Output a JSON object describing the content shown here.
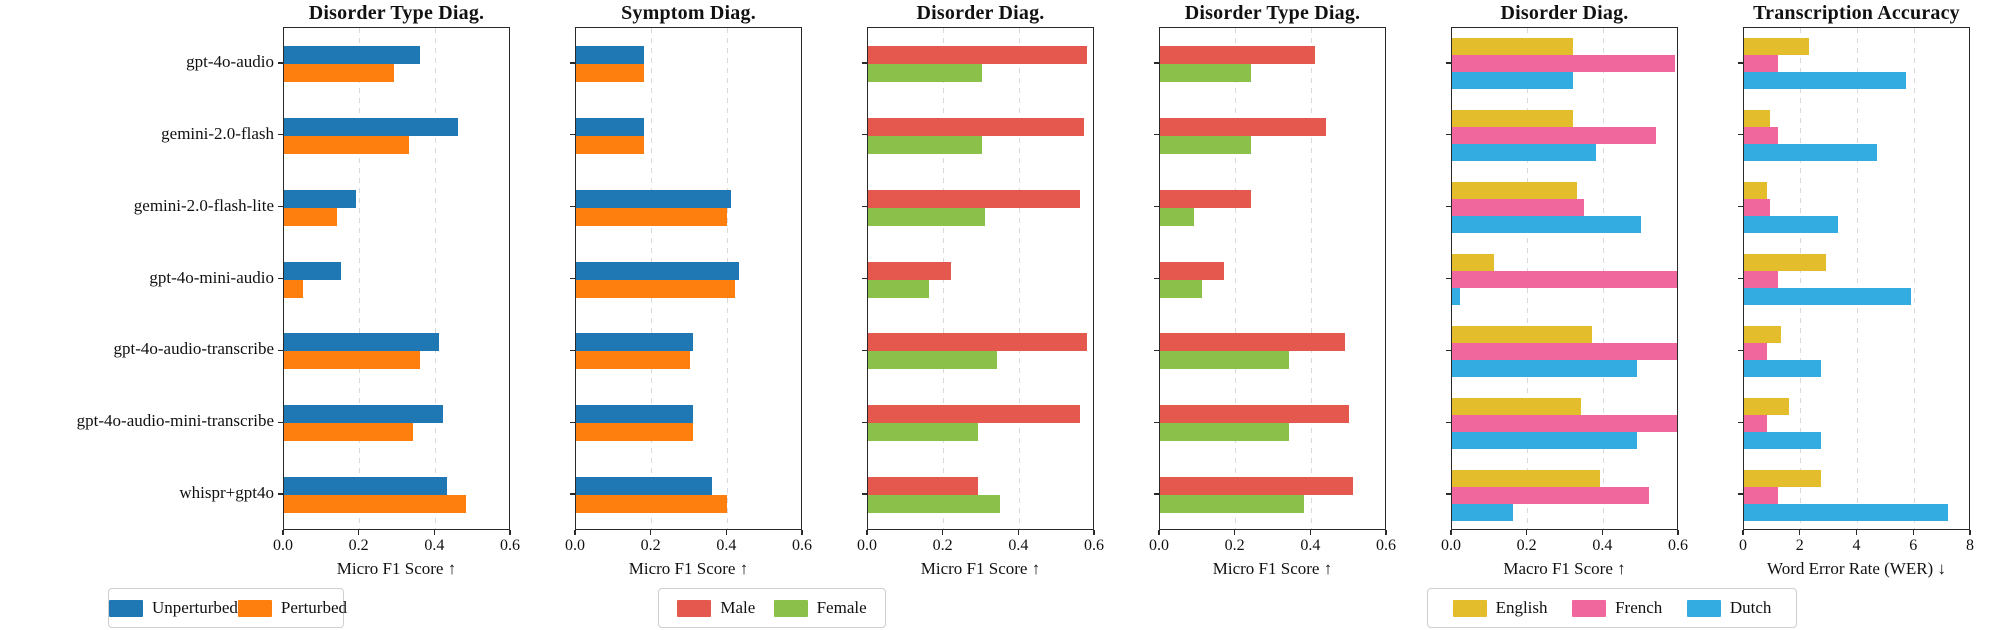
{
  "chart_data": {
    "type": "bar",
    "orientation": "horizontal",
    "models": [
      "gpt-4o-audio",
      "gemini-2.0-flash",
      "gemini-2.0-flash-lite",
      "gpt-4o-mini-audio",
      "gpt-4o-audio-transcribe",
      "gpt-4o-audio-mini-transcribe",
      "whispr+gpt4o"
    ],
    "panels": [
      {
        "title": "Disorder Type Diag.",
        "xlabel": "Micro F1 Score ↑",
        "xlim": [
          0,
          0.6
        ],
        "grid": true,
        "xticks": [
          {
            "label": "0.0",
            "value": 0.0
          },
          {
            "label": "0.2",
            "value": 0.2
          },
          {
            "label": "0.4",
            "value": 0.4
          },
          {
            "label": "0.6",
            "value": 0.6
          }
        ],
        "series": [
          {
            "name": "Unperturbed",
            "color": "#1f77b4",
            "values": [
              0.36,
              0.46,
              0.19,
              0.15,
              0.41,
              0.42,
              0.43
            ]
          },
          {
            "name": "Perturbed",
            "color": "#ff7f0e",
            "values": [
              0.29,
              0.33,
              0.14,
              0.05,
              0.36,
              0.34,
              0.48
            ]
          }
        ]
      },
      {
        "title": "Symptom Diag.",
        "xlabel": "Micro F1 Score ↑",
        "xlim": [
          0,
          0.6
        ],
        "grid": true,
        "xticks": [
          {
            "label": "0.0",
            "value": 0.0
          },
          {
            "label": "0.2",
            "value": 0.2
          },
          {
            "label": "0.4",
            "value": 0.4
          },
          {
            "label": "0.6",
            "value": 0.6
          }
        ],
        "series": [
          {
            "name": "Unperturbed",
            "color": "#1f77b4",
            "values": [
              0.18,
              0.18,
              0.41,
              0.43,
              0.31,
              0.31,
              0.36
            ]
          },
          {
            "name": "Perturbed",
            "color": "#ff7f0e",
            "values": [
              0.18,
              0.18,
              0.4,
              0.42,
              0.3,
              0.31,
              0.4
            ]
          }
        ]
      },
      {
        "title": "Disorder Diag.",
        "xlabel": "Micro F1 Score ↑",
        "xlim": [
          0,
          0.6
        ],
        "grid": true,
        "xticks": [
          {
            "label": "0.0",
            "value": 0.0
          },
          {
            "label": "0.2",
            "value": 0.2
          },
          {
            "label": "0.4",
            "value": 0.4
          },
          {
            "label": "0.6",
            "value": 0.6
          }
        ],
        "series": [
          {
            "name": "Male",
            "color": "#e4584e",
            "values": [
              0.58,
              0.57,
              0.56,
              0.22,
              0.58,
              0.56,
              0.29
            ]
          },
          {
            "name": "Female",
            "color": "#8bc04a",
            "values": [
              0.3,
              0.3,
              0.31,
              0.16,
              0.34,
              0.29,
              0.35
            ]
          }
        ]
      },
      {
        "title": "Disorder Type Diag.",
        "xlabel": "Micro F1 Score ↑",
        "xlim": [
          0,
          0.6
        ],
        "grid": true,
        "xticks": [
          {
            "label": "0.0",
            "value": 0.0
          },
          {
            "label": "0.2",
            "value": 0.2
          },
          {
            "label": "0.4",
            "value": 0.4
          },
          {
            "label": "0.6",
            "value": 0.6
          }
        ],
        "series": [
          {
            "name": "Male",
            "color": "#e4584e",
            "values": [
              0.41,
              0.44,
              0.24,
              0.17,
              0.49,
              0.5,
              0.51
            ]
          },
          {
            "name": "Female",
            "color": "#8bc04a",
            "values": [
              0.24,
              0.24,
              0.09,
              0.11,
              0.34,
              0.34,
              0.38
            ]
          }
        ]
      },
      {
        "title": "Disorder Diag.",
        "xlabel": "Macro F1 Score ↑",
        "xlim": [
          0,
          0.6
        ],
        "grid": true,
        "xticks": [
          {
            "label": "0.0",
            "value": 0.0
          },
          {
            "label": "0.2",
            "value": 0.2
          },
          {
            "label": "0.4",
            "value": 0.4
          },
          {
            "label": "0.6",
            "value": 0.6
          }
        ],
        "series": [
          {
            "name": "English",
            "color": "#e4bd2c",
            "values": [
              0.32,
              0.32,
              0.33,
              0.11,
              0.37,
              0.34,
              0.39
            ]
          },
          {
            "name": "French",
            "color": "#ef679d",
            "values": [
              0.59,
              0.54,
              0.35,
              0.6,
              0.6,
              0.6,
              0.52
            ]
          },
          {
            "name": "Dutch",
            "color": "#33ade1",
            "values": [
              0.32,
              0.38,
              0.5,
              0.02,
              0.49,
              0.49,
              0.16
            ]
          }
        ]
      },
      {
        "title": "Transcription Accuracy",
        "xlabel": "Word Error Rate (WER) ↓",
        "xlim": [
          0,
          8
        ],
        "grid": true,
        "xticks": [
          {
            "label": "0",
            "value": 0
          },
          {
            "label": "2",
            "value": 2
          },
          {
            "label": "4",
            "value": 4
          },
          {
            "label": "6",
            "value": 6
          },
          {
            "label": "8",
            "value": 8
          }
        ],
        "series": [
          {
            "name": "English",
            "color": "#e4bd2c",
            "values": [
              2.3,
              0.9,
              0.8,
              2.9,
              1.3,
              1.6,
              2.7
            ]
          },
          {
            "name": "French",
            "color": "#ef679d",
            "values": [
              1.2,
              1.2,
              0.9,
              1.2,
              0.8,
              0.8,
              1.2
            ]
          },
          {
            "name": "Dutch",
            "color": "#33ade1",
            "values": [
              5.7,
              4.7,
              3.3,
              5.9,
              2.7,
              2.7,
              7.2
            ]
          }
        ]
      }
    ],
    "legends": [
      {
        "items": [
          {
            "label": "Unperturbed",
            "color": "#1f77b4"
          },
          {
            "label": "Perturbed",
            "color": "#ff7f0e"
          }
        ]
      },
      {
        "items": [
          {
            "label": "Male",
            "color": "#e4584e"
          },
          {
            "label": "Female",
            "color": "#8bc04a"
          }
        ]
      },
      {
        "items": [
          {
            "label": "English",
            "color": "#e4bd2c"
          },
          {
            "label": "French",
            "color": "#ef679d"
          },
          {
            "label": "Dutch",
            "color": "#33ade1"
          }
        ]
      }
    ]
  }
}
